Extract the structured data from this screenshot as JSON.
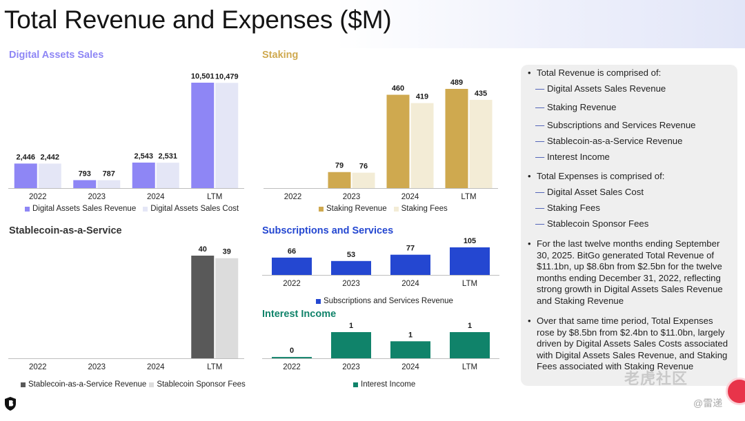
{
  "page": {
    "title": "Total Revenue and Expenses ($M)"
  },
  "colors": {
    "das_revenue": "#8e86f5",
    "das_cost": "#e4e6f6",
    "staking_revenue": "#cfa94f",
    "staking_fees": "#f3ecd6",
    "scaas_revenue": "#595959",
    "scaas_fees": "#dcdcdc",
    "subs": "#2447d1",
    "interest": "#10836a",
    "title_das": "#8e86f5",
    "title_staking": "#cfa94f",
    "title_scaas": "#333333",
    "title_subs": "#2447d1",
    "title_interest": "#10836a"
  },
  "chart_data": [
    {
      "type": "bar",
      "title": "Digital Assets Sales",
      "categories": [
        "2022",
        "2023",
        "2024",
        "LTM"
      ],
      "series": [
        {
          "name": "Digital Assets Sales Revenue",
          "values": [
            2446,
            793,
            2543,
            10501
          ],
          "labels": [
            "2,446",
            "793",
            "2,543",
            "10,501"
          ]
        },
        {
          "name": "Digital Assets Sales Cost",
          "values": [
            2442,
            787,
            2531,
            10479
          ],
          "labels": [
            "2,442",
            "787",
            "2,531",
            "10,479"
          ]
        }
      ],
      "legend": "bottom"
    },
    {
      "type": "bar",
      "title": "Staking",
      "categories": [
        "2022",
        "2023",
        "2024",
        "LTM"
      ],
      "series": [
        {
          "name": "Staking Revenue",
          "values": [
            0,
            79,
            460,
            489
          ],
          "labels": [
            "",
            "79",
            "460",
            "489"
          ]
        },
        {
          "name": "Staking Fees",
          "values": [
            0,
            76,
            419,
            435
          ],
          "labels": [
            "",
            "76",
            "419",
            "435"
          ]
        }
      ],
      "legend": "bottom"
    },
    {
      "type": "bar",
      "title": "Stablecoin-as-a-Service",
      "categories": [
        "2022",
        "2023",
        "2024",
        "LTM"
      ],
      "series": [
        {
          "name": "Stablecoin-as-a-Service Revenue",
          "values": [
            0,
            0,
            0,
            40
          ],
          "labels": [
            "",
            "",
            "",
            "40"
          ]
        },
        {
          "name": "Stablecoin Sponsor Fees",
          "values": [
            0,
            0,
            0,
            39
          ],
          "labels": [
            "",
            "",
            "",
            "39"
          ]
        }
      ],
      "legend": "bottom"
    },
    {
      "type": "bar",
      "title": "Subscriptions and Services",
      "categories": [
        "2022",
        "2023",
        "2024",
        "LTM"
      ],
      "series": [
        {
          "name": "Subscriptions and Services Revenue",
          "values": [
            66,
            53,
            77,
            105
          ],
          "labels": [
            "66",
            "53",
            "77",
            "105"
          ]
        }
      ],
      "legend": "bottom"
    },
    {
      "type": "bar",
      "title": "Interest Income",
      "categories": [
        "2022",
        "2023",
        "2024",
        "LTM"
      ],
      "series": [
        {
          "name": "Interest Income",
          "values": [
            0.05,
            1.0,
            0.65,
            1.0
          ],
          "labels": [
            "0",
            "1",
            "1",
            "1"
          ]
        }
      ],
      "legend": "bottom"
    }
  ],
  "sidebar": {
    "revenue_head": "Total Revenue is comprised of:",
    "revenue_items": [
      "Digital Assets Sales Revenue",
      "Staking Revenue",
      "Subscriptions and Services Revenue",
      "Stablecoin-as-a-Service Revenue",
      "Interest Income"
    ],
    "expense_head": "Total Expenses is comprised of:",
    "expense_items": [
      "Digital Asset Sales Cost",
      "Staking Fees",
      "Stablecoin Sponsor Fees"
    ],
    "para1": "For the last twelve months ending September 30, 2025. BitGo generated Total Revenue of $11.1bn, up $8.6bn from $2.5bn for the twelve months ending December 31, 2022, reflecting strong growth in Digital Assets Sales Revenue and Staking Revenue",
    "para2": "Over that same time period, Total Expenses rose by $8.5bn from $2.4bn to $11.0bn, largely driven by Digital Assets Sales Costs associated with Digital Assets Sales Revenue, and Staking Fees associated with Staking Revenue",
    "bullet": "•",
    "dash": "—"
  },
  "watermark": {
    "brand": "老虎社区",
    "user": "@雷递"
  }
}
